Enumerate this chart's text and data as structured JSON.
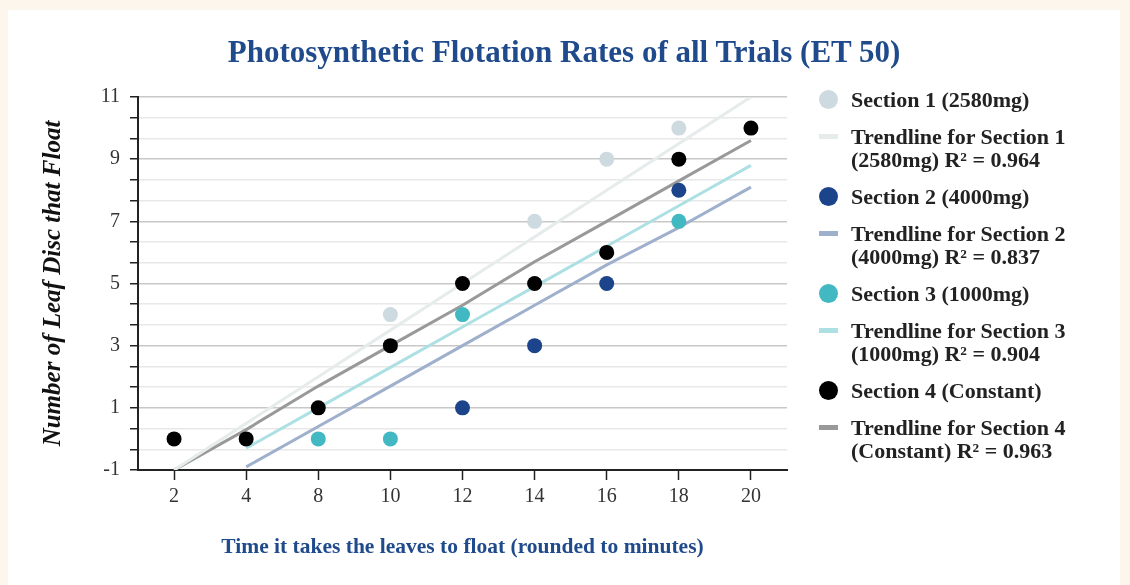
{
  "chart_data": {
    "type": "scatter",
    "title": "Photosynthetic Flotation Rates of all Trials (ET 50)",
    "xlabel": "Time it takes the leaves to float (rounded to minutes)",
    "ylabel": "Number of Leaf Disc that Float",
    "categories": [
      "2",
      "4",
      "8",
      "10",
      "12",
      "14",
      "16",
      "18",
      "20"
    ],
    "series": [
      {
        "name": "Section 1 (2580mg)",
        "type": "scatter",
        "color": "#cddbe0",
        "values": [
          null,
          null,
          null,
          4,
          null,
          7,
          9,
          10,
          null
        ]
      },
      {
        "name": "Trendline for Section 1 (2580mg) R² = 0.964",
        "type": "line",
        "marker": "none",
        "color": "#e6ecec",
        "values": [
          -1.0,
          0.5,
          2.0,
          3.5,
          5.0,
          6.5,
          8.0,
          9.5,
          11.0
        ]
      },
      {
        "name": "Section 2 (4000mg)",
        "type": "scatter",
        "color": "#1c448a",
        "values": [
          null,
          null,
          null,
          null,
          1,
          3,
          5,
          8,
          null
        ]
      },
      {
        "name": "Trendline for Section 2 (4000mg) R² = 0.837",
        "type": "line",
        "marker": "none",
        "color": "#9fb0cd",
        "values": [
          null,
          -0.9,
          0.4,
          1.7,
          3.0,
          4.3,
          5.6,
          6.8,
          8.1
        ]
      },
      {
        "name": "Section 3 (1000mg)",
        "type": "scatter",
        "color": "#42b9c2",
        "values": [
          null,
          null,
          0,
          0,
          4,
          null,
          null,
          7,
          null
        ]
      },
      {
        "name": "Trendline for Section 3 (1000mg) R² = 0.904",
        "type": "line",
        "marker": "none",
        "color": "#ade0e3",
        "values": [
          null,
          -0.3,
          1.0,
          2.3,
          3.6,
          4.9,
          6.2,
          7.5,
          8.8
        ]
      },
      {
        "name": "Section 4 (Constant)",
        "type": "scatter",
        "color": "#000000",
        "values": [
          0,
          0,
          1,
          3,
          5,
          5,
          6,
          9,
          10
        ]
      },
      {
        "name": "Trendline for Section 4 (Constant) R² = 0.963",
        "type": "line",
        "marker": "none",
        "color": "#999999",
        "values": [
          -1.0,
          0.3,
          1.7,
          3.0,
          4.3,
          5.7,
          7.0,
          8.3,
          9.6
        ]
      }
    ],
    "ylim": [
      -1,
      11
    ],
    "yticks": [
      -1,
      {
        "value": -0.333,
        "label": null
      },
      {
        "value": 0.333,
        "label": null
      },
      1,
      {
        "value": 1.667,
        "label": null
      },
      {
        "value": 2.333,
        "label": null
      },
      3,
      {
        "value": 3.667,
        "label": null
      },
      {
        "value": 4.333,
        "label": null
      },
      5,
      {
        "value": 5.667,
        "label": null
      },
      {
        "value": 6.333,
        "label": null
      },
      7,
      {
        "value": 7.667,
        "label": null
      },
      {
        "value": 8.333,
        "label": null
      },
      9,
      {
        "value": 9.667,
        "label": null
      },
      {
        "value": 10.333,
        "label": null
      },
      11
    ],
    "grid": "y",
    "legend": "right",
    "marker": "circle"
  }
}
